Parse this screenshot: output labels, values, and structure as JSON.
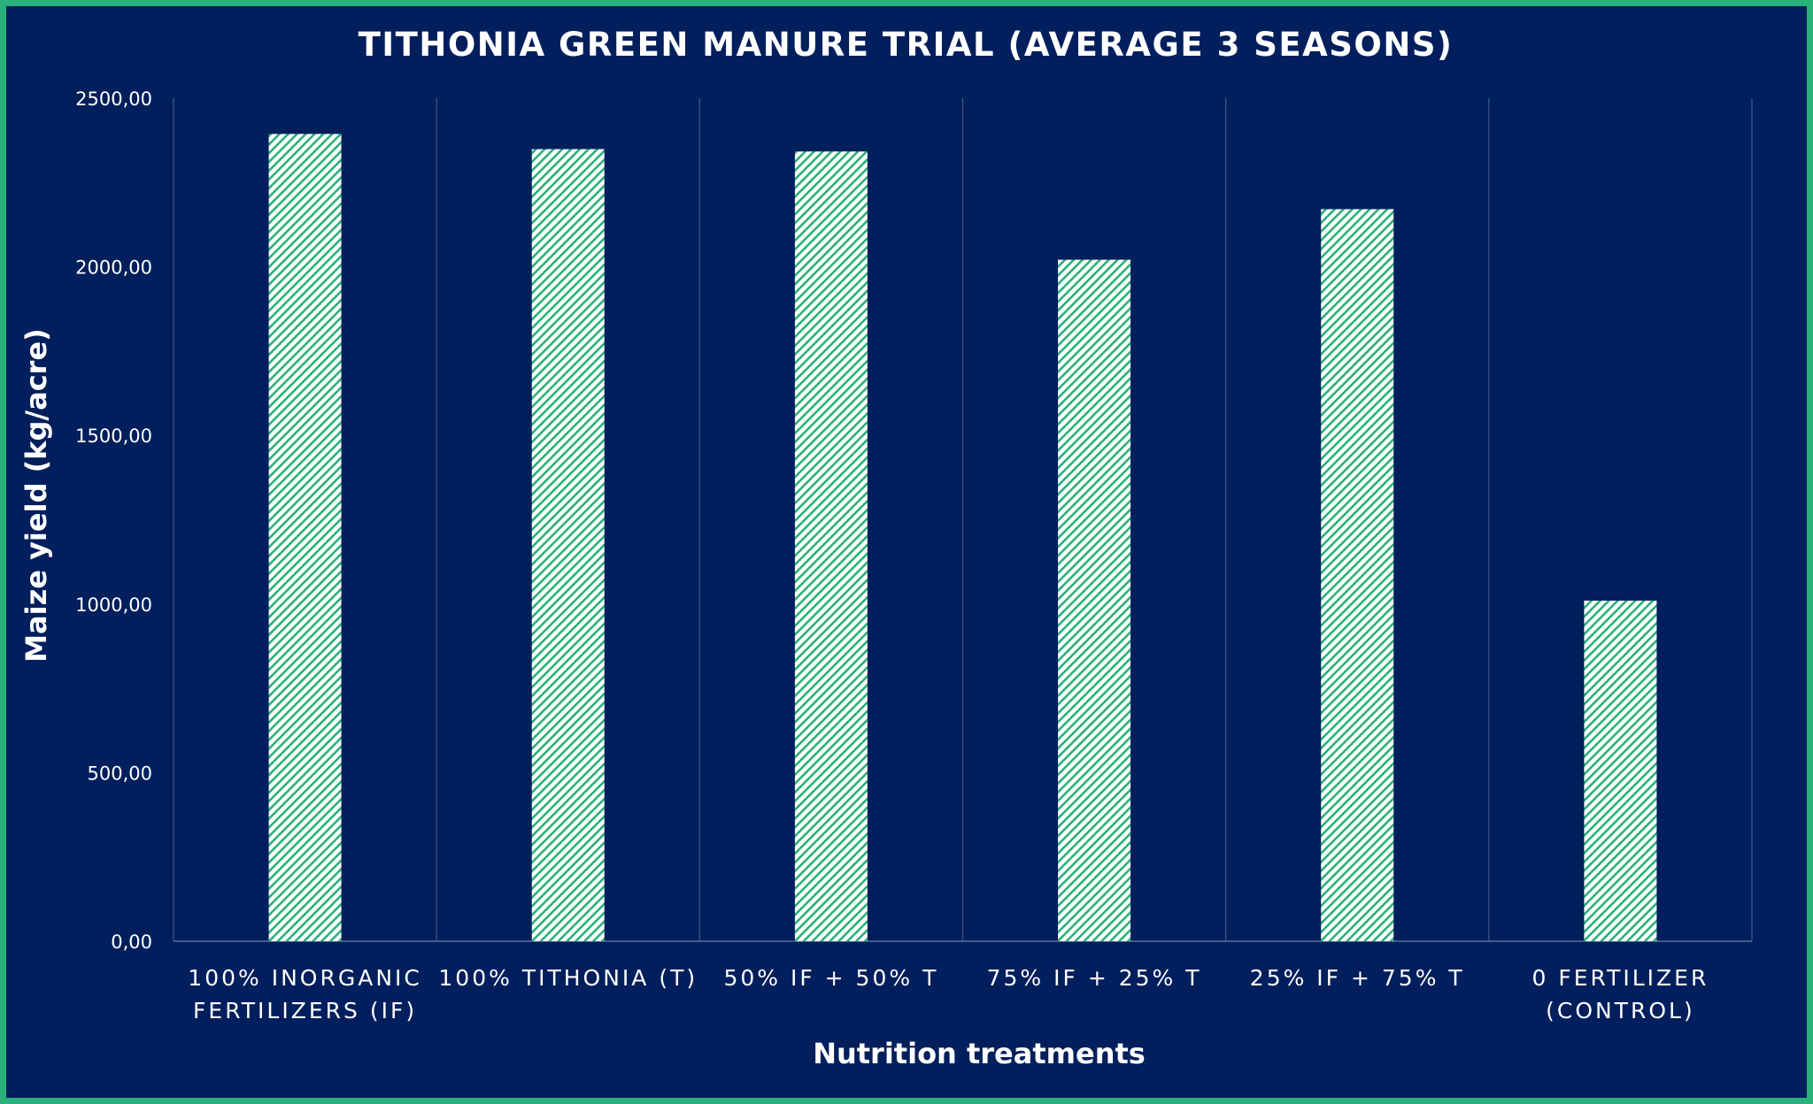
{
  "chart_data": {
    "type": "bar",
    "title": "TITHONIA GREEN MANURE TRIAL (AVERAGE 3 SEASONS)",
    "xlabel": "Nutrition treatments",
    "ylabel": "Maize yield (kg/acre)",
    "ylim": [
      0,
      2500
    ],
    "yticks": [
      "0,00",
      "500,00",
      "1000,00",
      "1500,00",
      "2000,00",
      "2500,00"
    ],
    "categories": [
      [
        "100% INORGANIC",
        "FERTILIZERS (IF)"
      ],
      [
        "100% TITHONIA (T)"
      ],
      [
        "50% IF + 50% T"
      ],
      [
        "75% IF + 25% T"
      ],
      [
        "25% IF + 75% T"
      ],
      [
        "0 FERTILIZER",
        "(CONTROL)"
      ]
    ],
    "values": [
      2394,
      2349,
      2342,
      2021,
      2171,
      1010
    ],
    "grid": "vertical category separators",
    "colors": {
      "background": "#001f5c",
      "border": "#2bb07a",
      "hatch": "#2bb07a",
      "bar_fill": "#ffffff"
    }
  }
}
